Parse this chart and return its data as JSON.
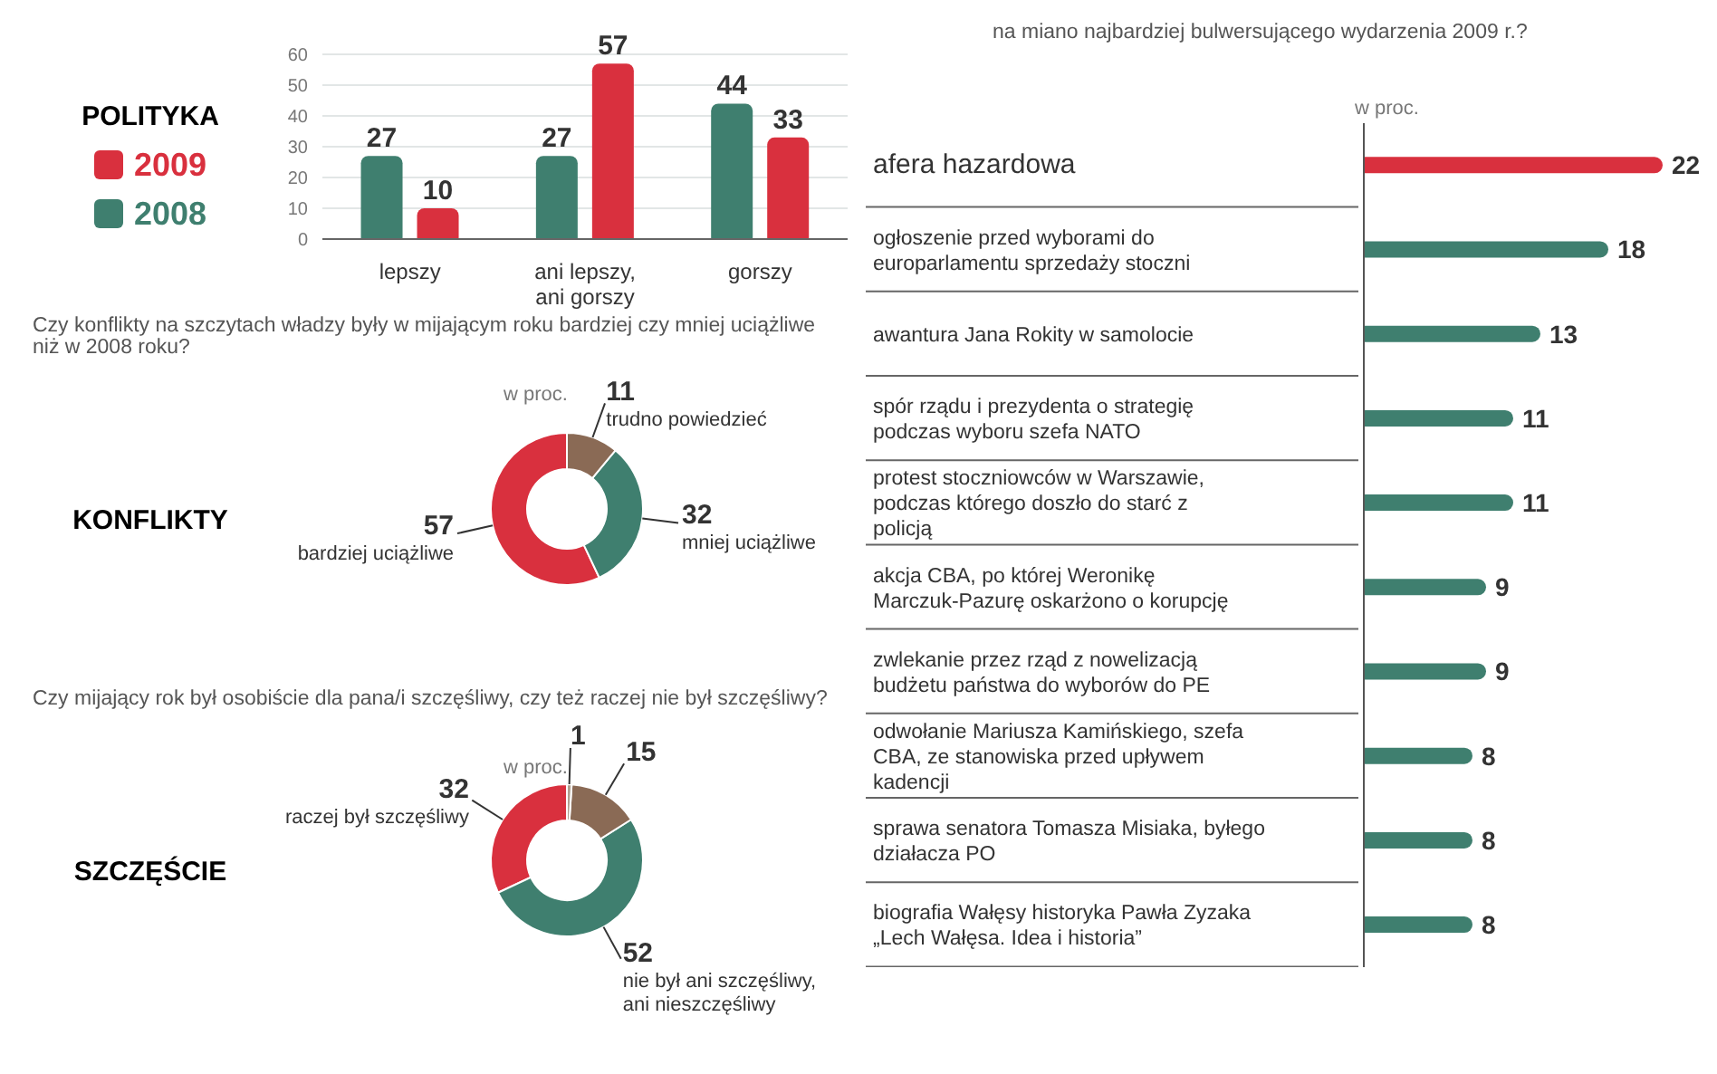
{
  "chart_data": [
    {
      "type": "bar",
      "title": "POLITYKA",
      "categories": [
        "lepszy",
        "ani lepszy, ani gorszy",
        "gorszy"
      ],
      "series": [
        {
          "name": "2008",
          "color": "#3f7f6f",
          "values": [
            27,
            27,
            44
          ]
        },
        {
          "name": "2009",
          "color": "#d9303e",
          "values": [
            10,
            57,
            33
          ]
        }
      ],
      "ylim": [
        0,
        60
      ],
      "yticks": [
        0,
        10,
        20,
        30,
        40,
        50,
        60
      ],
      "grid": "y",
      "legend": "left",
      "data_labels": true
    },
    {
      "type": "donut",
      "title": "KONFLIKTY",
      "subtitle": "Czy konflikty na szczytach władzy były w mijającym roku bardziej czy mniej uciążliwe niż w 2008 roku?",
      "annotations": [
        "w proc."
      ],
      "categories": [
        "bardziej uciążliwe",
        "mniej uciążliwe",
        "trudno powiedzieć"
      ],
      "values": [
        57,
        32,
        11
      ],
      "colors": [
        "#d9303e",
        "#3f7f6f",
        "#8a6a55"
      ],
      "data_labels": true
    },
    {
      "type": "donut",
      "title": "SZCZĘŚCIE",
      "subtitle": "Czy mijający rok był osobiście dla pana/i szczęśliwy, czy też raczej nie był szczęśliwy?",
      "annotations": [
        "w proc."
      ],
      "categories": [
        "raczej był szczęśliwy",
        "nie był ani szczęśliwy, ani nieszczęśliwy",
        null,
        null
      ],
      "values": [
        32,
        52,
        15,
        1
      ],
      "colors": [
        "#d9303e",
        "#3f7f6f",
        "#8a6a55",
        "#b0a090"
      ],
      "data_labels": true
    },
    {
      "type": "bar",
      "orientation": "horizontal",
      "subtitle": "na miano najbardziej bulwersującego wydarzenia 2009 r.?",
      "annotations": [
        "w proc."
      ],
      "categories": [
        "afera hazardowa",
        "ogłoszenie przed wyborami do europarlamentu sprzedaży stoczni",
        "awantura Jana Rokity w samolocie",
        "spór rządu i prezydenta o strategię podczas wyboru szefa NATO",
        "protest stoczniowców w Warszawie, podczas którego doszło do starć z policją",
        "akcja CBA, po której Weronikę Marczuk-Pazurę oskarżono o korupcję",
        "zwlekanie przez rząd z nowelizacją budżetu państwa do wyborów do PE",
        "odwołanie Mariusza Kamińskiego, szefa CBA, ze stanowiska przed upływem kadencji",
        "sprawa senatora Tomasza Misiaka, byłego działacza PO",
        "biografia Wałęsy historyka Pawła Zyzaka „Lech Wałęsa. Idea i historia”"
      ],
      "values": [
        22,
        18,
        13,
        11,
        11,
        9,
        9,
        8,
        8,
        8
      ],
      "colors": [
        "#d9303e",
        "#3f7f6f",
        "#3f7f6f",
        "#3f7f6f",
        "#3f7f6f",
        "#3f7f6f",
        "#3f7f6f",
        "#3f7f6f",
        "#3f7f6f",
        "#3f7f6f"
      ],
      "data_labels": true
    }
  ]
}
